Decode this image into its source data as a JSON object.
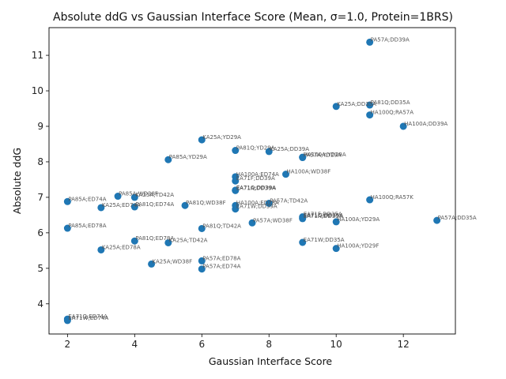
{
  "chart_data": {
    "type": "scatter",
    "title": "Absolute ddG vs Gaussian Interface Score (Mean, σ=1.0, Protein=1BRS)",
    "xlabel": "Gaussian Interface Score",
    "ylabel": "Absolute ddG",
    "xlim": [
      1.45,
      13.55
    ],
    "ylim": [
      3.15,
      11.78
    ],
    "xticks": [
      2,
      4,
      6,
      8,
      10,
      12
    ],
    "yticks": [
      4,
      5,
      6,
      7,
      8,
      9,
      10,
      11
    ],
    "marker_color": "#1f77b4",
    "grid": false,
    "points": [
      {
        "x": 11.0,
        "y": 11.37,
        "label": "PA57A;DD39A"
      },
      {
        "x": 10.0,
        "y": 9.56,
        "label": "KA25A;DD35A"
      },
      {
        "x": 11.0,
        "y": 9.6,
        "label": "PA81Q;DD35A"
      },
      {
        "x": 11.0,
        "y": 9.32,
        "label": "HA100Q;RA57A"
      },
      {
        "x": 12.0,
        "y": 9.0,
        "label": "HA100A;DD39A"
      },
      {
        "x": 6.0,
        "y": 8.62,
        "label": "KA25A;YD29A"
      },
      {
        "x": 7.0,
        "y": 8.32,
        "label": "PA81Q;YD29A"
      },
      {
        "x": 8.0,
        "y": 8.29,
        "label": "KA25A;DD39A"
      },
      {
        "x": 9.0,
        "y": 8.13,
        "label": "HA100A;YD29A"
      },
      {
        "x": 9.0,
        "y": 8.12,
        "label": "PA57A;YD29A"
      },
      {
        "x": 5.0,
        "y": 8.06,
        "label": "PA85A;YD29A"
      },
      {
        "x": 7.0,
        "y": 7.58,
        "label": "HA100A;ED74A"
      },
      {
        "x": 8.5,
        "y": 7.65,
        "label": "HA100A;WD38F"
      },
      {
        "x": 7.0,
        "y": 7.46,
        "label": "EA71F;DD39A"
      },
      {
        "x": 7.0,
        "y": 7.2,
        "label": "EA71Q;DD39A"
      },
      {
        "x": 7.0,
        "y": 7.19,
        "label": "EA71A;DD39A"
      },
      {
        "x": 3.5,
        "y": 7.03,
        "label": "PA85A;WD38F"
      },
      {
        "x": 4.0,
        "y": 7.0,
        "label": "KA25A;TD42A"
      },
      {
        "x": 2.0,
        "y": 6.88,
        "label": "PA85A;ED74A"
      },
      {
        "x": 3.0,
        "y": 6.71,
        "label": "KA25A;ED74A"
      },
      {
        "x": 4.0,
        "y": 6.73,
        "label": "PA81Q;ED74A"
      },
      {
        "x": 5.5,
        "y": 6.77,
        "label": "PA81Q;WD38F"
      },
      {
        "x": 7.0,
        "y": 6.77,
        "label": "HA100A;ED78A"
      },
      {
        "x": 7.0,
        "y": 6.67,
        "label": "EA71W;DD39A"
      },
      {
        "x": 8.0,
        "y": 6.83,
        "label": "PA57A;TD42A"
      },
      {
        "x": 11.0,
        "y": 6.93,
        "label": "HA100Q;RA57K"
      },
      {
        "x": 9.0,
        "y": 6.45,
        "label": "EA71F;DD35A"
      },
      {
        "x": 9.0,
        "y": 6.42,
        "label": "EA71Q;DD35A"
      },
      {
        "x": 9.0,
        "y": 6.4,
        "label": "EA71A;DD35A"
      },
      {
        "x": 10.0,
        "y": 6.31,
        "label": "HA100A;YD29A"
      },
      {
        "x": 7.5,
        "y": 6.28,
        "label": "PA57A;WD38F"
      },
      {
        "x": 13.0,
        "y": 6.35,
        "label": "PA57A;DD35A"
      },
      {
        "x": 2.0,
        "y": 6.13,
        "label": "PA85A;ED78A"
      },
      {
        "x": 6.0,
        "y": 6.12,
        "label": "PA81Q;TD42A"
      },
      {
        "x": 4.0,
        "y": 5.77,
        "label": "PA81Q;ED78A"
      },
      {
        "x": 5.0,
        "y": 5.72,
        "label": "KA25A;TD42A"
      },
      {
        "x": 9.0,
        "y": 5.73,
        "label": "EA71W;DD35A"
      },
      {
        "x": 10.0,
        "y": 5.56,
        "label": "HA100A;YD29F"
      },
      {
        "x": 3.0,
        "y": 5.52,
        "label": "KA25A;ED78A"
      },
      {
        "x": 6.0,
        "y": 5.21,
        "label": "PA57A;ED78A"
      },
      {
        "x": 4.5,
        "y": 5.12,
        "label": "KA25A;WD38F"
      },
      {
        "x": 6.0,
        "y": 4.98,
        "label": "PA57A;ED74A"
      },
      {
        "x": 2.0,
        "y": 3.57,
        "label": "EA71Q;ED74A"
      },
      {
        "x": 2.0,
        "y": 3.53,
        "label": "EA71W;ED74A"
      }
    ]
  }
}
